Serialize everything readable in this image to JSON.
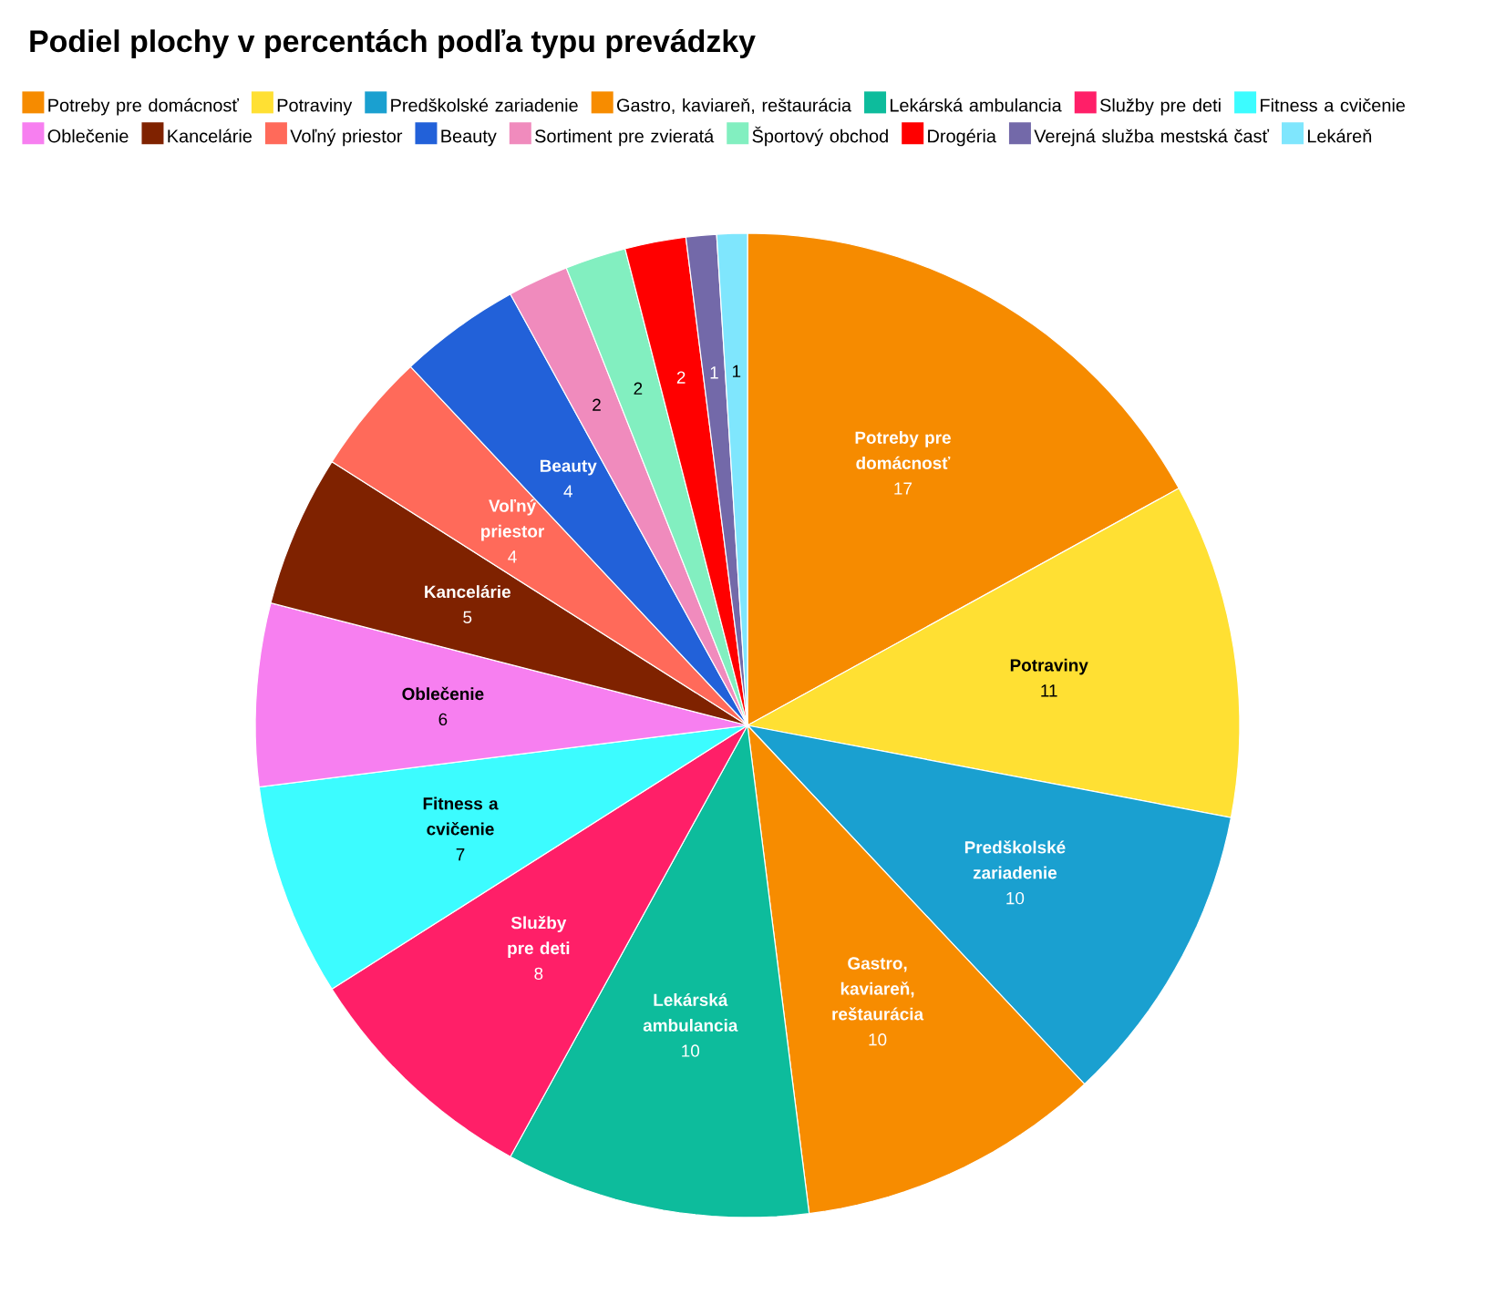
{
  "chart_data": {
    "type": "pie",
    "title": "Podiel plochy v percentách podľa typu prevádzky",
    "categories": [
      "Potreby pre domácnosť",
      "Potraviny",
      "Predškolské zariadenie",
      "Gastro, kaviareň, reštaurácia",
      "Lekárská ambulancia",
      "Služby pre deti",
      "Fitness a cvičenie",
      "Oblečenie",
      "Kancelárie",
      "Voľný priestor",
      "Beauty",
      "Sortiment pre zvieratá",
      "Športový obchod",
      "Drogéria",
      "Verejná služba mestská časť",
      "Lekáreň"
    ],
    "values": [
      17,
      11,
      10,
      10,
      10,
      8,
      7,
      6,
      5,
      4,
      4,
      2,
      2,
      2,
      1,
      1
    ],
    "colors": [
      "#f68b00",
      "#ffe033",
      "#1aa0d0",
      "#f78c00",
      "#0dbc9c",
      "#ff1f68",
      "#3cfcff",
      "#f77ff0",
      "#7f2200",
      "#ff6a5a",
      "#2261d9",
      "#f08bbd",
      "#82efc0",
      "#ff0000",
      "#7369a9",
      "#7fe6fd"
    ],
    "data_labels": true,
    "legend": "top"
  }
}
